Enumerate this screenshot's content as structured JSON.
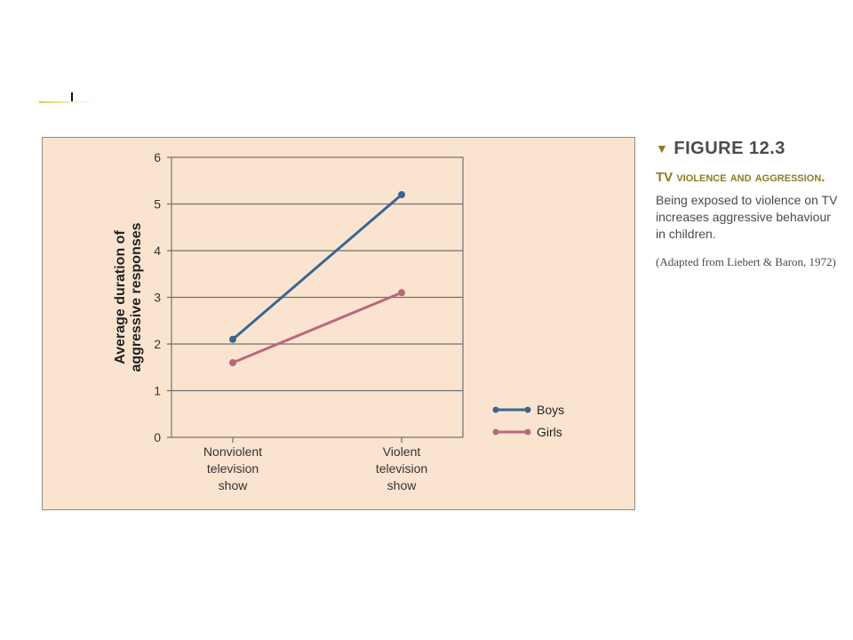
{
  "chart_data": {
    "type": "line",
    "categories": [
      "Nonviolent\ntelevision\nshow",
      "Violent\ntelevision\nshow"
    ],
    "series": [
      {
        "name": "Boys",
        "values": [
          2.1,
          5.2
        ],
        "color": "#3a6690"
      },
      {
        "name": "Girls",
        "values": [
          1.6,
          3.1
        ],
        "color": "#b8687c"
      }
    ],
    "ylabel": "Average duration of\naggressive responses",
    "xlabel": "",
    "ylim": [
      0,
      6
    ],
    "yticks": [
      "0",
      "1",
      "2",
      "3",
      "4",
      "5",
      "6"
    ],
    "grid": true,
    "legend": "right"
  },
  "caption": {
    "figure_label": "FIGURE  12.3",
    "title": "TV violence and aggression.",
    "description": "Being exposed to violence on TV increases aggressive behaviour in children.",
    "source": "(Adapted from Liebert & Baron, 1972)"
  },
  "colors": {
    "panel_bg": "#fbe4cf",
    "grid": "#707070",
    "accent": "#8b7c25"
  }
}
